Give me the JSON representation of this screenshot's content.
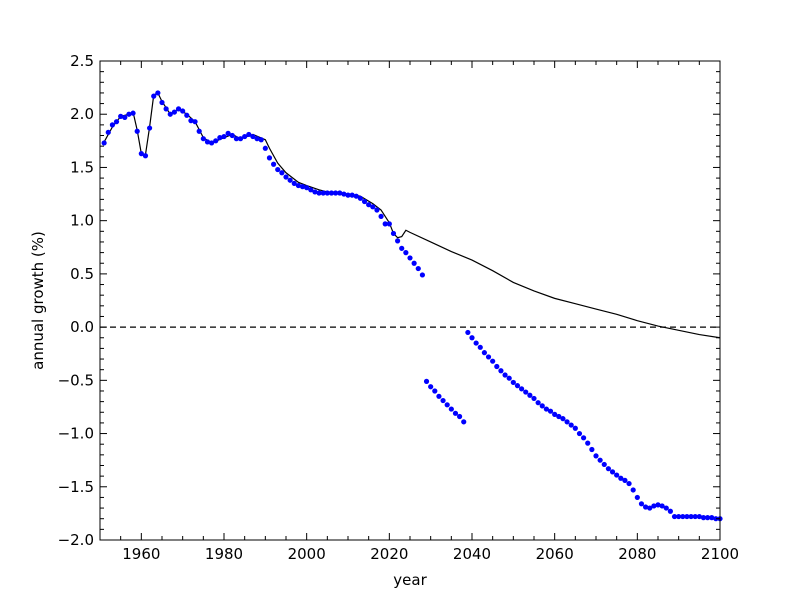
{
  "chart_data": {
    "type": "line",
    "title": "",
    "xlabel": "year",
    "ylabel": "annual growth (%)",
    "xlim": [
      1950,
      2100
    ],
    "ylim": [
      -2.0,
      2.5
    ],
    "grid": false,
    "x_ticks": [
      1960,
      1980,
      2000,
      2020,
      2040,
      2060,
      2080,
      2100
    ],
    "x_tick_labels": [
      "1960",
      "1980",
      "2000",
      "2020",
      "2040",
      "2060",
      "2080",
      "2100"
    ],
    "y_ticks": [
      -2.0,
      -1.5,
      -1.0,
      -0.5,
      0.0,
      0.5,
      1.0,
      1.5,
      2.0,
      2.5
    ],
    "y_tick_labels": [
      "−2.0",
      "−1.5",
      "−1.0",
      "−0.5",
      "0.0",
      "0.5",
      "1.0",
      "1.5",
      "2.0",
      "2.5"
    ],
    "reference_line": {
      "y": 0.0,
      "style": "dashed",
      "color": "#000000"
    },
    "series": [
      {
        "style": "line",
        "color": "#000000",
        "points": [
          [
            1951,
            1.74
          ],
          [
            1953,
            1.88
          ],
          [
            1955,
            1.98
          ],
          [
            1957,
            2.0
          ],
          [
            1958,
            2.02
          ],
          [
            1959,
            1.85
          ],
          [
            1960,
            1.63
          ],
          [
            1961,
            1.62
          ],
          [
            1962,
            1.88
          ],
          [
            1963,
            2.18
          ],
          [
            1964,
            2.2
          ],
          [
            1965,
            2.12
          ],
          [
            1967,
            2.0
          ],
          [
            1969,
            2.05
          ],
          [
            1971,
            2.0
          ],
          [
            1973,
            1.93
          ],
          [
            1975,
            1.78
          ],
          [
            1977,
            1.73
          ],
          [
            1980,
            1.78
          ],
          [
            1982,
            1.81
          ],
          [
            1984,
            1.77
          ],
          [
            1987,
            1.81
          ],
          [
            1990,
            1.76
          ],
          [
            1991,
            1.68
          ],
          [
            1993,
            1.54
          ],
          [
            1995,
            1.45
          ],
          [
            1998,
            1.36
          ],
          [
            2000,
            1.33
          ],
          [
            2003,
            1.29
          ],
          [
            2005,
            1.27
          ],
          [
            2010,
            1.25
          ],
          [
            2013,
            1.23
          ],
          [
            2016,
            1.16
          ],
          [
            2018,
            1.1
          ],
          [
            2020,
            0.98
          ],
          [
            2021,
            0.88
          ],
          [
            2022,
            0.84
          ],
          [
            2023,
            0.85
          ],
          [
            2024,
            0.91
          ],
          [
            2025,
            0.89
          ],
          [
            2030,
            0.8
          ],
          [
            2035,
            0.71
          ],
          [
            2040,
            0.63
          ],
          [
            2045,
            0.53
          ],
          [
            2050,
            0.42
          ],
          [
            2055,
            0.34
          ],
          [
            2060,
            0.27
          ],
          [
            2065,
            0.22
          ],
          [
            2070,
            0.17
          ],
          [
            2075,
            0.12
          ],
          [
            2080,
            0.06
          ],
          [
            2085,
            0.01
          ],
          [
            2090,
            -0.03
          ],
          [
            2095,
            -0.07
          ],
          [
            2100,
            -0.1
          ]
        ]
      },
      {
        "style": "markers",
        "color": "#0000ff",
        "points": [
          [
            1951,
            1.73
          ],
          [
            1952,
            1.83
          ],
          [
            1953,
            1.9
          ],
          [
            1954,
            1.93
          ],
          [
            1955,
            1.98
          ],
          [
            1956,
            1.97
          ],
          [
            1957,
            2.0
          ],
          [
            1958,
            2.01
          ],
          [
            1959,
            1.84
          ],
          [
            1960,
            1.63
          ],
          [
            1961,
            1.61
          ],
          [
            1962,
            1.87
          ],
          [
            1963,
            2.17
          ],
          [
            1964,
            2.2
          ],
          [
            1965,
            2.11
          ],
          [
            1966,
            2.05
          ],
          [
            1967,
            2.0
          ],
          [
            1968,
            2.02
          ],
          [
            1969,
            2.05
          ],
          [
            1970,
            2.03
          ],
          [
            1971,
            1.99
          ],
          [
            1972,
            1.94
          ],
          [
            1973,
            1.93
          ],
          [
            1974,
            1.84
          ],
          [
            1975,
            1.77
          ],
          [
            1976,
            1.74
          ],
          [
            1977,
            1.73
          ],
          [
            1978,
            1.75
          ],
          [
            1979,
            1.78
          ],
          [
            1980,
            1.79
          ],
          [
            1981,
            1.82
          ],
          [
            1982,
            1.8
          ],
          [
            1983,
            1.77
          ],
          [
            1984,
            1.77
          ],
          [
            1985,
            1.79
          ],
          [
            1986,
            1.81
          ],
          [
            1987,
            1.79
          ],
          [
            1988,
            1.77
          ],
          [
            1989,
            1.76
          ],
          [
            1990,
            1.68
          ],
          [
            1991,
            1.59
          ],
          [
            1992,
            1.53
          ],
          [
            1993,
            1.48
          ],
          [
            1994,
            1.45
          ],
          [
            1995,
            1.41
          ],
          [
            1996,
            1.38
          ],
          [
            1997,
            1.35
          ],
          [
            1998,
            1.33
          ],
          [
            1999,
            1.32
          ],
          [
            2000,
            1.31
          ],
          [
            2001,
            1.29
          ],
          [
            2002,
            1.27
          ],
          [
            2003,
            1.26
          ],
          [
            2004,
            1.26
          ],
          [
            2005,
            1.26
          ],
          [
            2006,
            1.26
          ],
          [
            2007,
            1.26
          ],
          [
            2008,
            1.26
          ],
          [
            2009,
            1.25
          ],
          [
            2010,
            1.24
          ],
          [
            2011,
            1.24
          ],
          [
            2012,
            1.23
          ],
          [
            2013,
            1.21
          ],
          [
            2014,
            1.18
          ],
          [
            2015,
            1.15
          ],
          [
            2016,
            1.13
          ],
          [
            2017,
            1.1
          ],
          [
            2018,
            1.04
          ],
          [
            2019,
            0.97
          ],
          [
            2020,
            0.97
          ],
          [
            2021,
            0.88
          ],
          [
            2022,
            0.81
          ],
          [
            2023,
            0.74
          ],
          [
            2024,
            0.7
          ],
          [
            2025,
            0.65
          ],
          [
            2026,
            0.6
          ],
          [
            2027,
            0.55
          ],
          [
            2028,
            0.49
          ],
          [
            2029,
            -0.51
          ],
          [
            2030,
            -0.56
          ],
          [
            2031,
            -0.6
          ],
          [
            2032,
            -0.65
          ],
          [
            2033,
            -0.69
          ],
          [
            2034,
            -0.73
          ],
          [
            2035,
            -0.77
          ],
          [
            2036,
            -0.81
          ],
          [
            2037,
            -0.84
          ],
          [
            2038,
            -0.89
          ],
          [
            2039,
            -0.05
          ],
          [
            2040,
            -0.1
          ],
          [
            2041,
            -0.15
          ],
          [
            2042,
            -0.19
          ],
          [
            2043,
            -0.24
          ],
          [
            2044,
            -0.28
          ],
          [
            2045,
            -0.32
          ],
          [
            2046,
            -0.37
          ],
          [
            2047,
            -0.41
          ],
          [
            2048,
            -0.45
          ],
          [
            2049,
            -0.48
          ],
          [
            2050,
            -0.52
          ],
          [
            2051,
            -0.55
          ],
          [
            2052,
            -0.58
          ],
          [
            2053,
            -0.61
          ],
          [
            2054,
            -0.64
          ],
          [
            2055,
            -0.67
          ],
          [
            2056,
            -0.71
          ],
          [
            2057,
            -0.74
          ],
          [
            2058,
            -0.77
          ],
          [
            2059,
            -0.79
          ],
          [
            2060,
            -0.82
          ],
          [
            2061,
            -0.84
          ],
          [
            2062,
            -0.86
          ],
          [
            2063,
            -0.89
          ],
          [
            2064,
            -0.92
          ],
          [
            2065,
            -0.95
          ],
          [
            2066,
            -1.0
          ],
          [
            2067,
            -1.04
          ],
          [
            2068,
            -1.09
          ],
          [
            2069,
            -1.15
          ],
          [
            2070,
            -1.21
          ],
          [
            2071,
            -1.25
          ],
          [
            2072,
            -1.29
          ],
          [
            2073,
            -1.33
          ],
          [
            2074,
            -1.36
          ],
          [
            2075,
            -1.39
          ],
          [
            2076,
            -1.42
          ],
          [
            2077,
            -1.44
          ],
          [
            2078,
            -1.47
          ],
          [
            2079,
            -1.53
          ],
          [
            2080,
            -1.6
          ],
          [
            2081,
            -1.66
          ],
          [
            2082,
            -1.69
          ],
          [
            2083,
            -1.7
          ],
          [
            2084,
            -1.68
          ],
          [
            2085,
            -1.67
          ],
          [
            2086,
            -1.68
          ],
          [
            2087,
            -1.7
          ],
          [
            2088,
            -1.73
          ],
          [
            2089,
            -1.78
          ],
          [
            2090,
            -1.78
          ],
          [
            2091,
            -1.78
          ],
          [
            2092,
            -1.78
          ],
          [
            2093,
            -1.78
          ],
          [
            2094,
            -1.78
          ],
          [
            2095,
            -1.78
          ],
          [
            2096,
            -1.79
          ],
          [
            2097,
            -1.79
          ],
          [
            2098,
            -1.79
          ],
          [
            2099,
            -1.8
          ],
          [
            2100,
            -1.8
          ]
        ]
      }
    ]
  }
}
